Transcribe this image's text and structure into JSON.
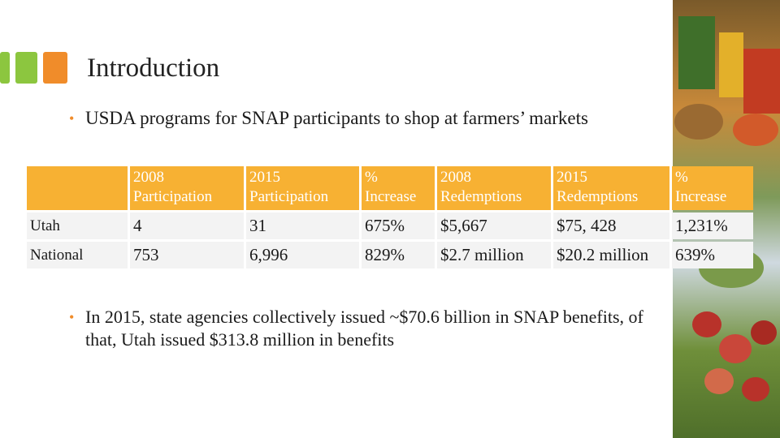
{
  "header": {
    "title": "Introduction"
  },
  "bullets": [
    "USDA programs for SNAP participants to shop at farmers’ markets",
    "In 2015, state agencies collectively issued ~$70.6 billion in SNAP benefits, of that, Utah issued $313.8 million in benefits"
  ],
  "table": {
    "header": [
      "2008 Participation",
      "2015 Participation",
      "% Increase",
      "2008 Redemptions",
      "2015 Redemptions",
      "% Increase"
    ],
    "rows": [
      [
        "Utah",
        "4",
        "31",
        "675%",
        "$5,667",
        "$75, 428",
        "1,231%"
      ],
      [
        "National",
        "753",
        "6,996",
        "829%",
        "$2.7 million",
        "$20.2 million",
        "639%"
      ]
    ]
  }
}
